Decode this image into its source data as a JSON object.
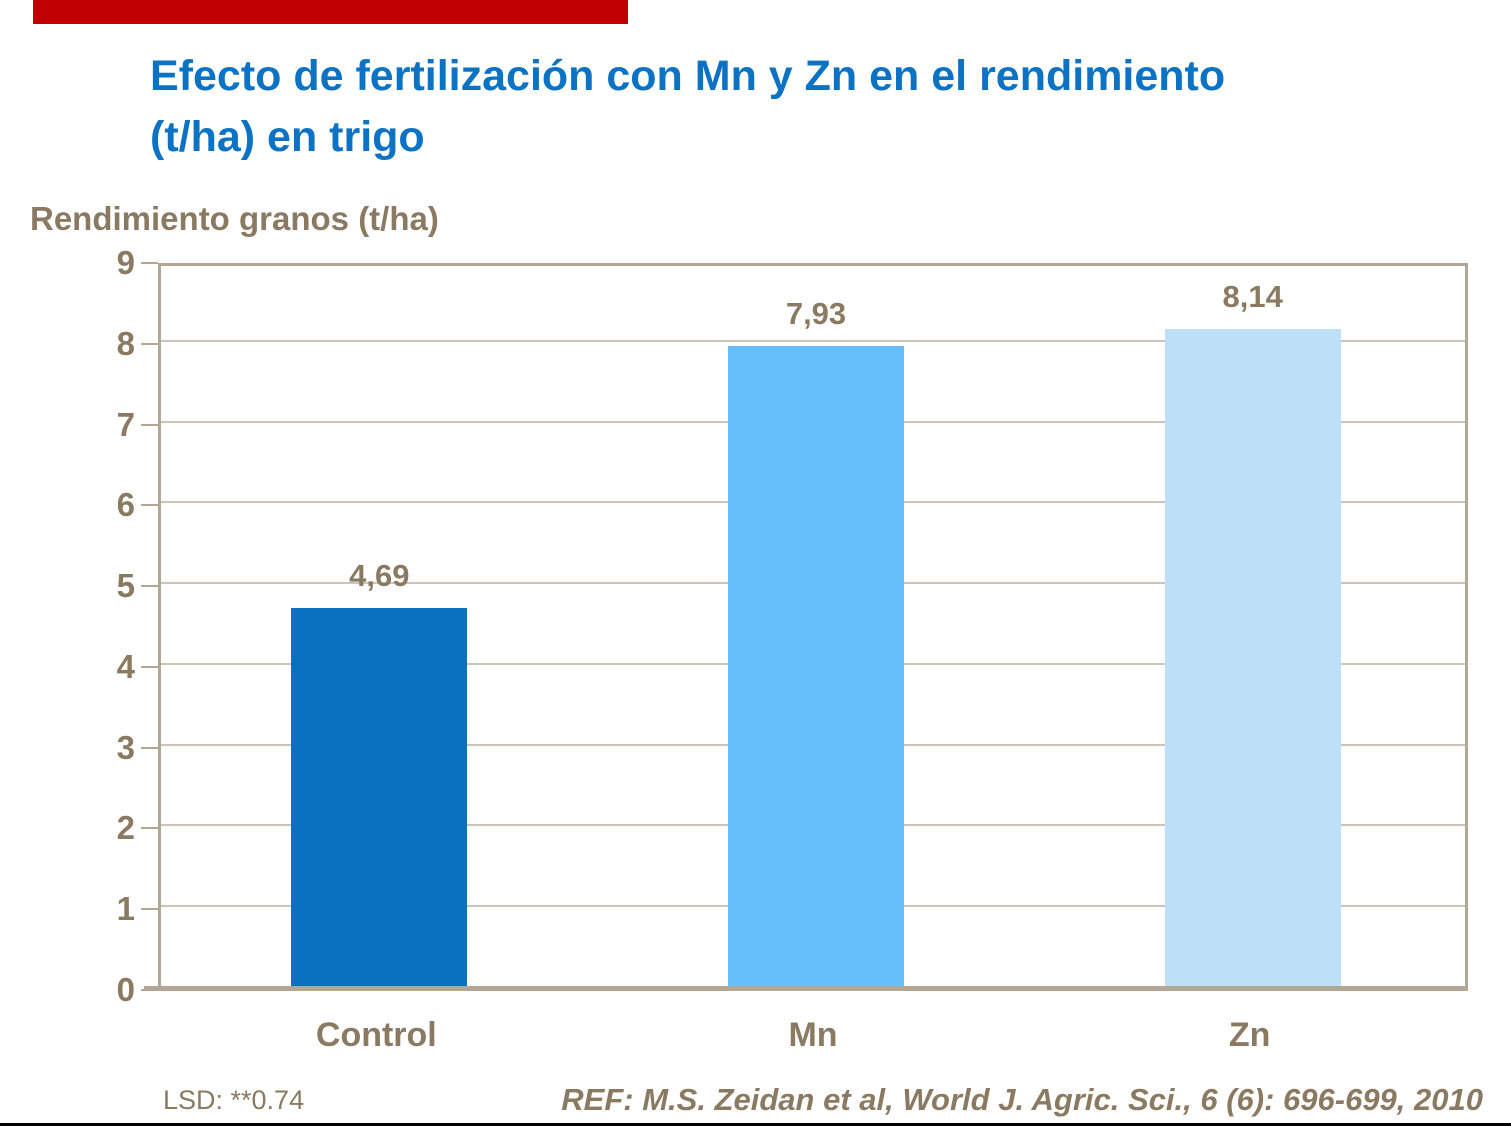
{
  "slide": {
    "title_line1": "Efecto de fertilización con Mn y Zn en el rendimiento",
    "title_line2": "(t/ha) en trigo",
    "axis_label": "Rendimiento granos (t/ha)",
    "footnote_lsd": "LSD: **0.74",
    "reference": "REF: M.S. Zeidan et al, World J. Agric. Sci., 6 (6): 696-699, 2010"
  },
  "colors": {
    "title_blue": "#0C73C4",
    "text_brown": "#8B7A62",
    "grid_line": "#CCC4B6",
    "plot_border": "#B2A794",
    "accent_red": "#C00000",
    "bottom_line": "#000000"
  },
  "chart_data": {
    "type": "bar",
    "title": "Efecto de fertilización con Mn y Zn en el rendimiento (t/ha) en trigo",
    "xlabel": "",
    "ylabel": "Rendimiento granos (t/ha)",
    "categories": [
      "Control",
      "Mn",
      "Zn"
    ],
    "values": [
      4.69,
      7.93,
      8.14
    ],
    "value_labels": [
      "4,69",
      "7,93",
      "8,14"
    ],
    "bar_colors": [
      "#0A70C0",
      "#66BEFA",
      "#BDDFF8"
    ],
    "ylim": [
      0,
      9
    ],
    "ytick_step": 1,
    "yticks": [
      0,
      1,
      2,
      3,
      4,
      5,
      6,
      7,
      8,
      9
    ],
    "grid": "horizontal",
    "legend": "none",
    "annotations": [
      "LSD: **0.74",
      "REF: M.S. Zeidan et al, World J. Agric. Sci., 6 (6): 696-699, 2010"
    ]
  }
}
